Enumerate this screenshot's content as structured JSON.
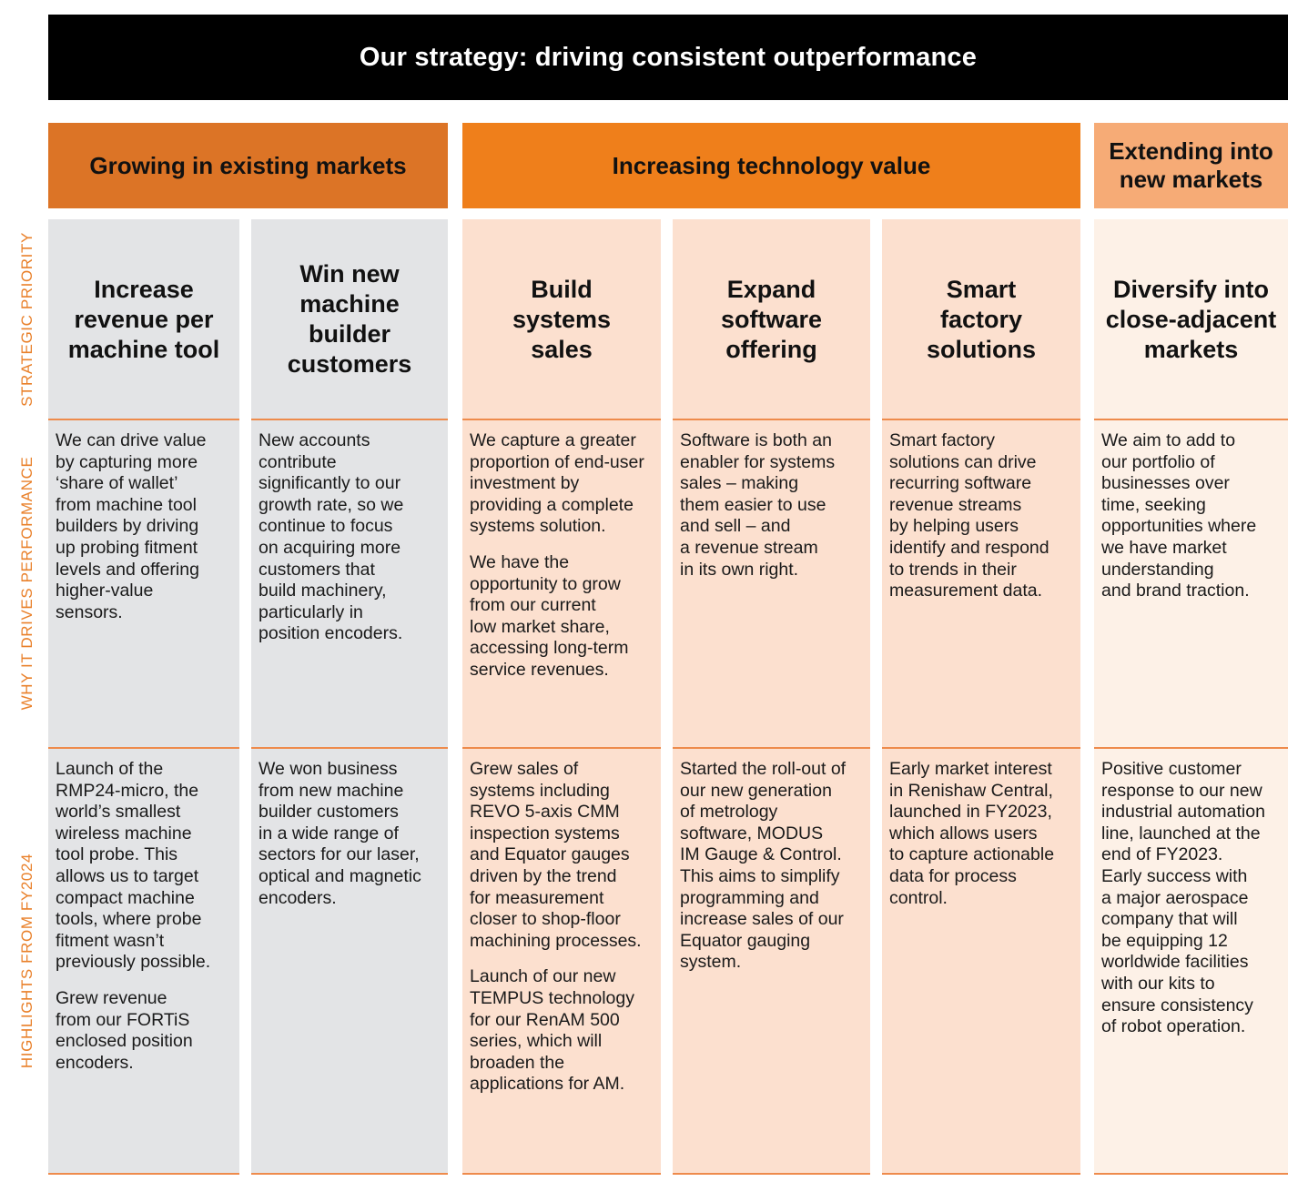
{
  "title": "Our strategy: driving consistent outperformance",
  "groups": [
    {
      "label": "Growing in existing markets"
    },
    {
      "label": "Increasing technology value"
    },
    {
      "label": "Extending into\nnew markets"
    }
  ],
  "row_labels": {
    "priority": "STRATEGIC PRIORITY",
    "why": "WHY IT DRIVES PERFORMANCE",
    "highlights": "HIGHLIGHTS FROM FY2024"
  },
  "columns": [
    {
      "priority": "Increase\nrevenue per\nmachine tool",
      "why": [
        "We can drive value\nby capturing more\n‘share of wallet’\nfrom machine tool\nbuilders by driving\nup probing fitment\nlevels and offering\nhigher-value\nsensors."
      ],
      "highlights": [
        "Launch of the\nRMP24-micro, the\nworld’s smallest\nwireless machine\ntool probe. This\nallows us to target\ncompact machine\ntools, where probe\nfitment wasn’t\npreviously possible.",
        "Grew revenue\nfrom our FORTiS\nenclosed position\nencoders."
      ]
    },
    {
      "priority": "Win new\nmachine\nbuilder\ncustomers",
      "why": [
        "New accounts\ncontribute\nsignificantly to our\ngrowth rate, so we\ncontinue to focus\non acquiring more\ncustomers that\nbuild machinery,\nparticularly in\nposition encoders."
      ],
      "highlights": [
        "We won business\nfrom new machine\nbuilder customers\nin a wide range of\nsectors for our laser,\noptical and magnetic\nencoders."
      ]
    },
    {
      "priority": "Build\nsystems\nsales",
      "why": [
        "We capture a greater\nproportion of end-user\ninvestment by\nproviding a complete\nsystems solution.",
        "We have the\nopportunity to grow\nfrom our current\nlow market share,\naccessing long-term\nservice revenues."
      ],
      "highlights": [
        "Grew sales of\nsystems including\nREVO 5-axis CMM\ninspection systems\nand Equator gauges\ndriven by the trend\nfor measurement\ncloser to shop-floor\nmachining processes.",
        "Launch of our new\nTEMPUS technology\nfor our RenAM 500\nseries, which will\nbroaden the\napplications for AM."
      ]
    },
    {
      "priority": "Expand\nsoftware\noffering",
      "why": [
        "Software is both an\nenabler for systems\nsales – making\nthem easier to use\nand sell – and\na revenue stream\nin its own right."
      ],
      "highlights": [
        "Started the roll-out of\nour new generation\nof metrology\nsoftware, MODUS\nIM Gauge & Control.\nThis aims to simplify\nprogramming and\nincrease sales of our\nEquator gauging\nsystem."
      ]
    },
    {
      "priority": "Smart\nfactory\nsolutions",
      "why": [
        "Smart factory\nsolutions can drive\nrecurring software\nrevenue streams\nby helping users\nidentify and respond\nto trends in their\nmeasurement data."
      ],
      "highlights": [
        "Early market interest\nin Renishaw Central,\nlaunched in FY2023,\nwhich allows users\nto capture actionable\ndata for process\ncontrol."
      ]
    },
    {
      "priority": "Diversify into\nclose-adjacent\nmarkets",
      "why": [
        "We aim to add to\nour portfolio of\nbusinesses over\ntime, seeking\nopportunities where\nwe have market\nunderstanding\nand brand traction."
      ],
      "highlights": [
        "Positive customer\nresponse to our new\nindustrial automation\nline, launched at the\nend of FY2023.\nEarly success with\na major aerospace\ncompany that will\nbe equipping 12\nworldwide facilities\nwith our kits to\nensure consistency\nof robot operation."
      ]
    }
  ],
  "colors": {
    "banner": "#000000",
    "group_1": "#dc7426",
    "group_2": "#ef7f1b",
    "group_3": "#f6ab76",
    "grey_column": "#e3e4e6",
    "peach_column": "#fce0cf",
    "light_column": "#fdf1e7",
    "side_label": "#e9802a"
  }
}
